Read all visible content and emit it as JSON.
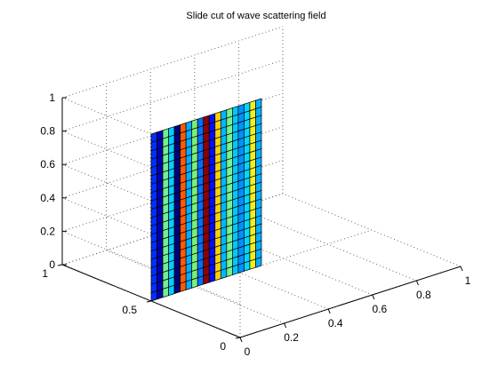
{
  "chart_data": {
    "type": "surface-slice",
    "title": "Slide cut of wave scattering field",
    "xlabel": "",
    "ylabel": "",
    "zlabel": "",
    "xlim": [
      0,
      1
    ],
    "ylim": [
      0,
      1
    ],
    "zlim": [
      0,
      1
    ],
    "x_ticks": [
      "0",
      "0.2",
      "0.4",
      "0.6",
      "0.8",
      "1"
    ],
    "y_ticks": [
      "0",
      "0.5",
      "1"
    ],
    "z_ticks": [
      "0",
      "0.2",
      "0.4",
      "0.6",
      "0.8",
      "1"
    ],
    "grid": true,
    "slice": {
      "plane": "y = 0.5",
      "x_range": [
        0,
        0.5
      ],
      "z_range": [
        0,
        1
      ],
      "rows": 20,
      "column_colors": [
        "#0030ff",
        "#0000b8",
        "#70f090",
        "#00d0ff",
        "#000080",
        "#ff5a00",
        "#00b0ff",
        "#7af07a",
        "#0070ff",
        "#900000",
        "#0010ff",
        "#ffd000",
        "#00b8ff",
        "#7ef08a",
        "#00c8ff",
        "#0090ff",
        "#00d8ff",
        "#f0f020",
        "#00b0ff"
      ]
    }
  }
}
